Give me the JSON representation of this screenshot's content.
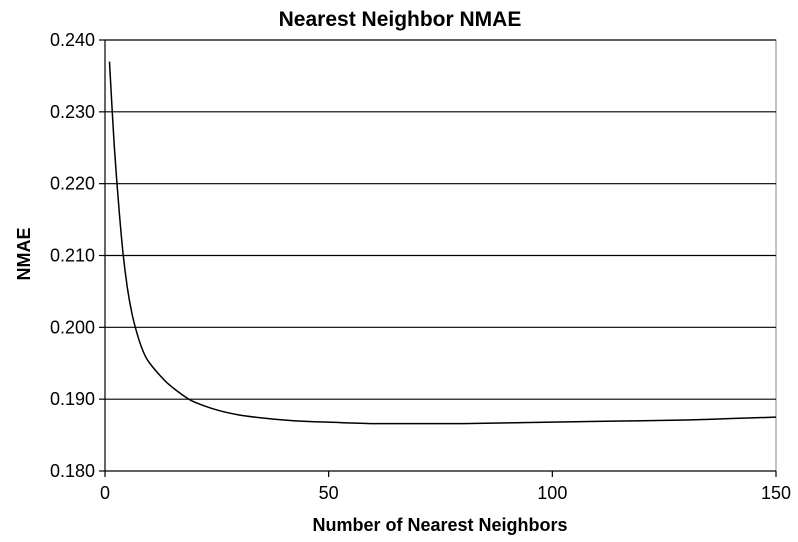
{
  "chart_data": {
    "type": "line",
    "title": "Nearest Neighbor NMAE",
    "xlabel": "Number of Nearest Neighbors",
    "ylabel": "NMAE",
    "xlim": [
      0,
      150
    ],
    "ylim": [
      0.18,
      0.24
    ],
    "x_ticks": [
      "0",
      "50",
      "100",
      "150"
    ],
    "y_ticks": [
      "0.180",
      "0.190",
      "0.200",
      "0.210",
      "0.220",
      "0.230",
      "0.240"
    ],
    "grid": "horizontal",
    "legend": "none",
    "series": [
      {
        "color": "#000000",
        "x": [
          1,
          2,
          3,
          4,
          5,
          6,
          7,
          8,
          9,
          10,
          12,
          14,
          16,
          18,
          20,
          25,
          30,
          35,
          40,
          45,
          50,
          60,
          70,
          80,
          90,
          100,
          110,
          120,
          130,
          140,
          150
        ],
        "y": [
          0.237,
          0.226,
          0.2175,
          0.2105,
          0.2055,
          0.202,
          0.1995,
          0.1975,
          0.196,
          0.195,
          0.1935,
          0.1922,
          0.1912,
          0.1903,
          0.1896,
          0.1885,
          0.1878,
          0.1874,
          0.1871,
          0.1869,
          0.1868,
          0.1866,
          0.1866,
          0.1866,
          0.1867,
          0.1868,
          0.1869,
          0.187,
          0.1871,
          0.1873,
          0.1875
        ]
      }
    ]
  }
}
